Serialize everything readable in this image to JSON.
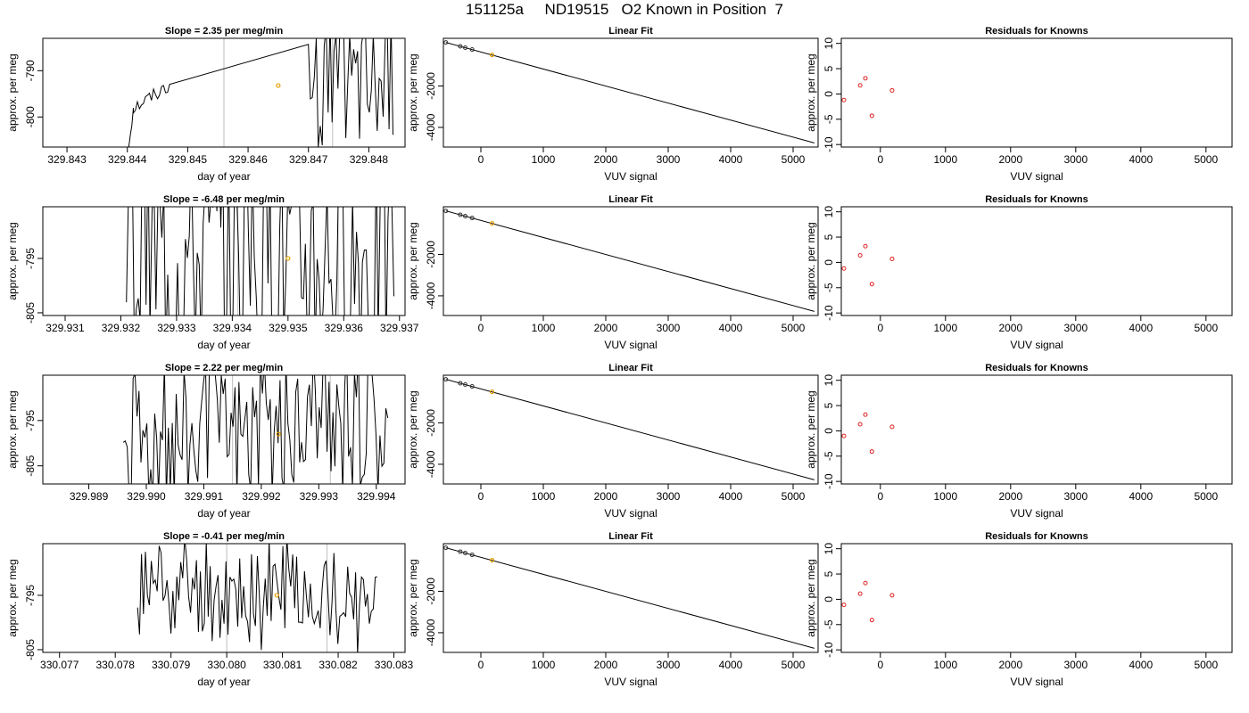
{
  "page_title": "151125a     ND19515   O2 Known in Position  7",
  "colors": {
    "trace": "#000000",
    "marker_orange": "#e69f00",
    "residual": "#dd2222",
    "vline": "#bebebe",
    "axis": "#000000"
  },
  "chart_data": [
    {
      "type": "line",
      "title": "Slope =  2.35  per meg/min",
      "xlabel": "day of year",
      "ylabel": "approx. per meg",
      "xlim": [
        329.8426,
        329.8486
      ],
      "ylim": [
        -806.5,
        -783
      ],
      "xticks": [
        "329.843",
        "329.844",
        "329.845",
        "329.846",
        "329.847",
        "329.848"
      ],
      "yticks": [
        "-790",
        "-800"
      ],
      "vlines": [
        329.8456,
        329.8474
      ],
      "highlight_point": {
        "x": 329.8465,
        "y": -793.2
      },
      "series": [
        {
          "x0": 329.844,
          "x1": 329.8484,
          "noise": 1.6,
          "segments": [
            {
              "from": 329.844,
              "to": 329.8441,
              "start": -808,
              "end": -798
            },
            {
              "from": 329.8441,
              "to": 329.8447,
              "start": -798,
              "end": -793
            },
            {
              "from": 329.847,
              "to": 329.8484,
              "start": -793,
              "end": -793,
              "wild": 14
            }
          ]
        }
      ]
    },
    {
      "type": "line",
      "title": "Linear Fit",
      "xlabel": "VUV signal",
      "ylabel": "approx. per meg",
      "xlim": [
        -600,
        5400
      ],
      "ylim": [
        -4950,
        300
      ],
      "xticks": [
        "0",
        "1000",
        "2000",
        "3000",
        "4000",
        "5000"
      ],
      "yticks": [
        "-2000",
        "-4000"
      ],
      "line": {
        "x": [
          -560,
          5340
        ],
        "y": [
          100,
          -4750
        ]
      },
      "points": [
        {
          "x": -560,
          "y": 100
        },
        {
          "x": -330,
          "y": -85
        },
        {
          "x": -250,
          "y": -150
        },
        {
          "x": -140,
          "y": -240
        }
      ],
      "highlight_point": {
        "x": 180,
        "y": -500
      }
    },
    {
      "type": "scatter",
      "title": "Residuals for Knowns",
      "xlabel": "VUV signal",
      "ylabel": "approx. per meg",
      "xlim": [
        -600,
        5400
      ],
      "ylim": [
        -10.5,
        11
      ],
      "xticks": [
        "0",
        "1000",
        "2000",
        "3000",
        "4000",
        "5000"
      ],
      "yticks": [
        "10",
        "5",
        "0",
        "-5",
        "-10"
      ],
      "points": [
        {
          "x": -560,
          "y": -1.2
        },
        {
          "x": -310,
          "y": 1.7
        },
        {
          "x": -230,
          "y": 3.1
        },
        {
          "x": -130,
          "y": -4.3
        },
        {
          "x": 180,
          "y": 0.7
        }
      ]
    },
    {
      "type": "line",
      "title": "Slope =  -6.48  per meg/min",
      "xlabel": "day of year",
      "ylabel": "approx. per meg",
      "xlim": [
        329.9306,
        329.9371
      ],
      "ylim": [
        -805.5,
        -785.5
      ],
      "xticks": [
        "329.931",
        "329.932",
        "329.933",
        "329.934",
        "329.935",
        "329.936",
        "329.937"
      ],
      "yticks": [
        "-785",
        "-795",
        "-805"
      ],
      "vlines": [
        329.9341,
        329.9359
      ],
      "highlight_point": {
        "x": 329.935,
        "y": -795
      },
      "series": [
        {
          "x0": 329.9321,
          "x1": 329.9369,
          "noise": 0,
          "segments": [
            {
              "from": 329.9321,
              "to": 329.9369,
              "start": -795,
              "end": -795,
              "wild": 22
            }
          ]
        }
      ]
    },
    {
      "type": "line",
      "title": "Linear Fit",
      "xlabel": "VUV signal",
      "ylabel": "approx. per meg",
      "xlim": [
        -600,
        5400
      ],
      "ylim": [
        -4950,
        300
      ],
      "xticks": [
        "0",
        "1000",
        "2000",
        "3000",
        "4000",
        "5000"
      ],
      "yticks": [
        "-2000",
        "-4000"
      ],
      "line": {
        "x": [
          -560,
          5340
        ],
        "y": [
          100,
          -4750
        ]
      },
      "points": [
        {
          "x": -560,
          "y": 100
        },
        {
          "x": -330,
          "y": -85
        },
        {
          "x": -250,
          "y": -150
        },
        {
          "x": -140,
          "y": -240
        }
      ],
      "highlight_point": {
        "x": 180,
        "y": -500
      }
    },
    {
      "type": "scatter",
      "title": "Residuals for Knowns",
      "xlabel": "VUV signal",
      "ylabel": "approx. per meg",
      "xlim": [
        -600,
        5400
      ],
      "ylim": [
        -10.5,
        11
      ],
      "xticks": [
        "0",
        "1000",
        "2000",
        "3000",
        "4000",
        "5000"
      ],
      "yticks": [
        "10",
        "5",
        "0",
        "-5",
        "-10"
      ],
      "points": [
        {
          "x": -560,
          "y": -1.2
        },
        {
          "x": -310,
          "y": 1.4
        },
        {
          "x": -230,
          "y": 3.2
        },
        {
          "x": -130,
          "y": -4.3
        },
        {
          "x": 180,
          "y": 0.7
        }
      ]
    },
    {
      "type": "line",
      "title": "Slope =  2.22  per meg/min",
      "xlabel": "day of year",
      "ylabel": "approx. per meg",
      "xlim": [
        329.9882,
        329.9945
      ],
      "ylim": [
        -809,
        -785
      ],
      "xticks": [
        "329.989",
        "329.990",
        "329.991",
        "329.992",
        "329.993",
        "329.994"
      ],
      "yticks": [
        "-795",
        "-805"
      ],
      "vlines": [
        329.9915,
        329.9932
      ],
      "highlight_point": {
        "x": 329.9923,
        "y": -798
      },
      "series": [
        {
          "x0": 329.9896,
          "x1": 329.9942,
          "noise": 0,
          "segments": [
            {
              "from": 329.9896,
              "to": 329.9942,
              "start": -797,
              "end": -795,
              "wild": 16
            }
          ]
        }
      ]
    },
    {
      "type": "line",
      "title": "Linear Fit",
      "xlabel": "VUV signal",
      "ylabel": "approx. per meg",
      "xlim": [
        -600,
        5400
      ],
      "ylim": [
        -4950,
        300
      ],
      "xticks": [
        "0",
        "1000",
        "2000",
        "3000",
        "4000",
        "5000"
      ],
      "yticks": [
        "-2000",
        "-4000"
      ],
      "line": {
        "x": [
          -560,
          5340
        ],
        "y": [
          100,
          -4750
        ]
      },
      "points": [
        {
          "x": -560,
          "y": 100
        },
        {
          "x": -330,
          "y": -85
        },
        {
          "x": -250,
          "y": -150
        },
        {
          "x": -140,
          "y": -240
        }
      ],
      "highlight_point": {
        "x": 180,
        "y": -500
      }
    },
    {
      "type": "scatter",
      "title": "Residuals for Knowns",
      "xlabel": "VUV signal",
      "ylabel": "approx. per meg",
      "xlim": [
        -600,
        5400
      ],
      "ylim": [
        -10.5,
        11
      ],
      "xticks": [
        "0",
        "1000",
        "2000",
        "3000",
        "4000",
        "5000"
      ],
      "yticks": [
        "10",
        "5",
        "0",
        "-5",
        "-10"
      ],
      "points": [
        {
          "x": -560,
          "y": -1.0
        },
        {
          "x": -310,
          "y": 1.3
        },
        {
          "x": -230,
          "y": 3.2
        },
        {
          "x": -130,
          "y": -4.1
        },
        {
          "x": 180,
          "y": 0.8
        }
      ]
    },
    {
      "type": "line",
      "title": "Slope =  -0.41  per meg/min",
      "xlabel": "day of year",
      "ylabel": "approx. per meg",
      "xlim": [
        330.0767,
        330.0832
      ],
      "ylim": [
        -805.5,
        -785.5
      ],
      "xticks": [
        "330.077",
        "330.078",
        "330.079",
        "330.080",
        "330.081",
        "330.082",
        "330.083"
      ],
      "yticks": [
        "-785",
        "-795",
        "-805"
      ],
      "vlines": [
        330.08,
        330.0818
      ],
      "highlight_point": {
        "x": 330.0809,
        "y": -795
      },
      "series": [
        {
          "x0": 330.0784,
          "x1": 330.0827,
          "noise": 2.6,
          "segments": [
            {
              "from": 330.0784,
              "to": 330.0827,
              "start": -795,
              "end": -795,
              "wild": 9
            }
          ]
        }
      ]
    },
    {
      "type": "line",
      "title": "Linear Fit",
      "xlabel": "VUV signal",
      "ylabel": "approx. per meg",
      "xlim": [
        -600,
        5400
      ],
      "ylim": [
        -4950,
        300
      ],
      "xticks": [
        "0",
        "1000",
        "2000",
        "3000",
        "4000",
        "5000"
      ],
      "yticks": [
        "-2000",
        "-4000"
      ],
      "line": {
        "x": [
          -560,
          5340
        ],
        "y": [
          100,
          -4750
        ]
      },
      "points": [
        {
          "x": -560,
          "y": 100
        },
        {
          "x": -330,
          "y": -85
        },
        {
          "x": -250,
          "y": -150
        },
        {
          "x": -140,
          "y": -240
        }
      ],
      "highlight_point": {
        "x": 180,
        "y": -500
      }
    },
    {
      "type": "scatter",
      "title": "Residuals for Knowns",
      "xlabel": "VUV signal",
      "ylabel": "approx. per meg",
      "xlim": [
        -600,
        5400
      ],
      "ylim": [
        -10.5,
        11
      ],
      "xticks": [
        "0",
        "1000",
        "2000",
        "3000",
        "4000",
        "5000"
      ],
      "yticks": [
        "10",
        "5",
        "0",
        "-5",
        "-10"
      ],
      "points": [
        {
          "x": -560,
          "y": -1.1
        },
        {
          "x": -310,
          "y": 1.1
        },
        {
          "x": -230,
          "y": 3.2
        },
        {
          "x": -130,
          "y": -4.1
        },
        {
          "x": 180,
          "y": 0.8
        }
      ]
    }
  ]
}
